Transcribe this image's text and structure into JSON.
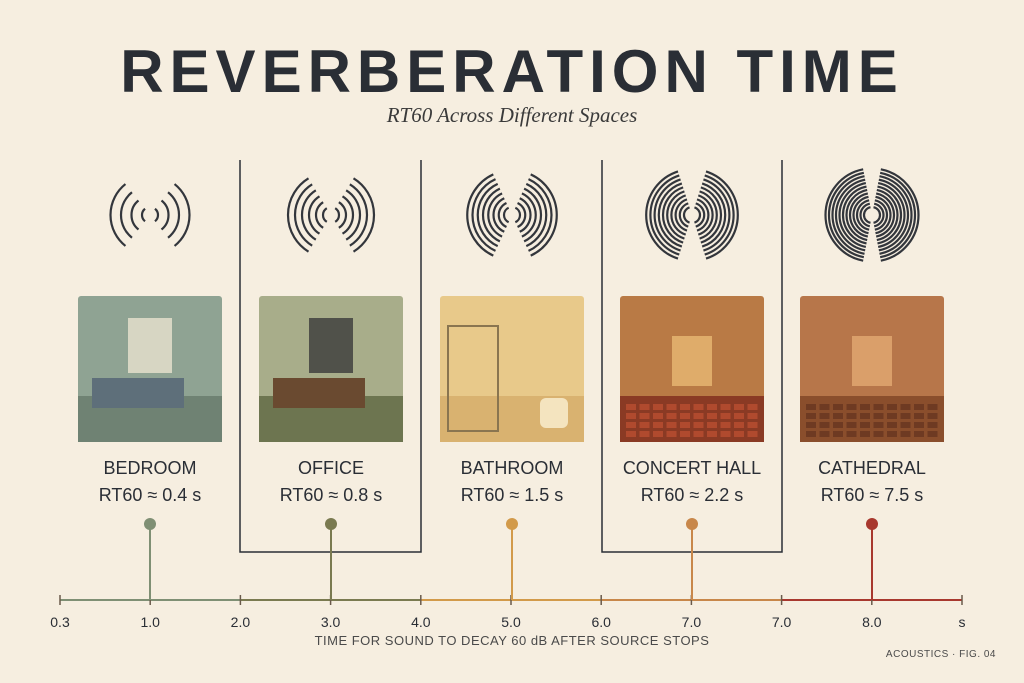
{
  "header": {
    "title": "REVERBERATION TIME",
    "subtitle": "RT60 Across Different Spaces"
  },
  "spaces": [
    {
      "name": "BEDROOM",
      "rt60": "RT60 ≈ 0.4 s"
    },
    {
      "name": "OFFICE",
      "rt60": "RT60 ≈ 0.8 s"
    },
    {
      "name": "BATHROOM",
      "rt60": "RT60 ≈ 1.5 s"
    },
    {
      "name": "CONCERT HALL",
      "rt60": "RT60 ≈ 2.2 s"
    },
    {
      "name": "CATHEDRAL",
      "rt60": "RT60 ≈ 7.5 s"
    }
  ],
  "axis": {
    "labels": [
      "0.3",
      "1.0",
      "2.0",
      "3.0",
      "4.0",
      "5.0",
      "6.0",
      "7.0",
      "7.0",
      "8.0",
      "s"
    ],
    "caption": "TIME FOR SOUND TO DECAY 60 dB AFTER SOURCE STOPS"
  },
  "footer": "ACOUSTICS · FIG. 04"
}
